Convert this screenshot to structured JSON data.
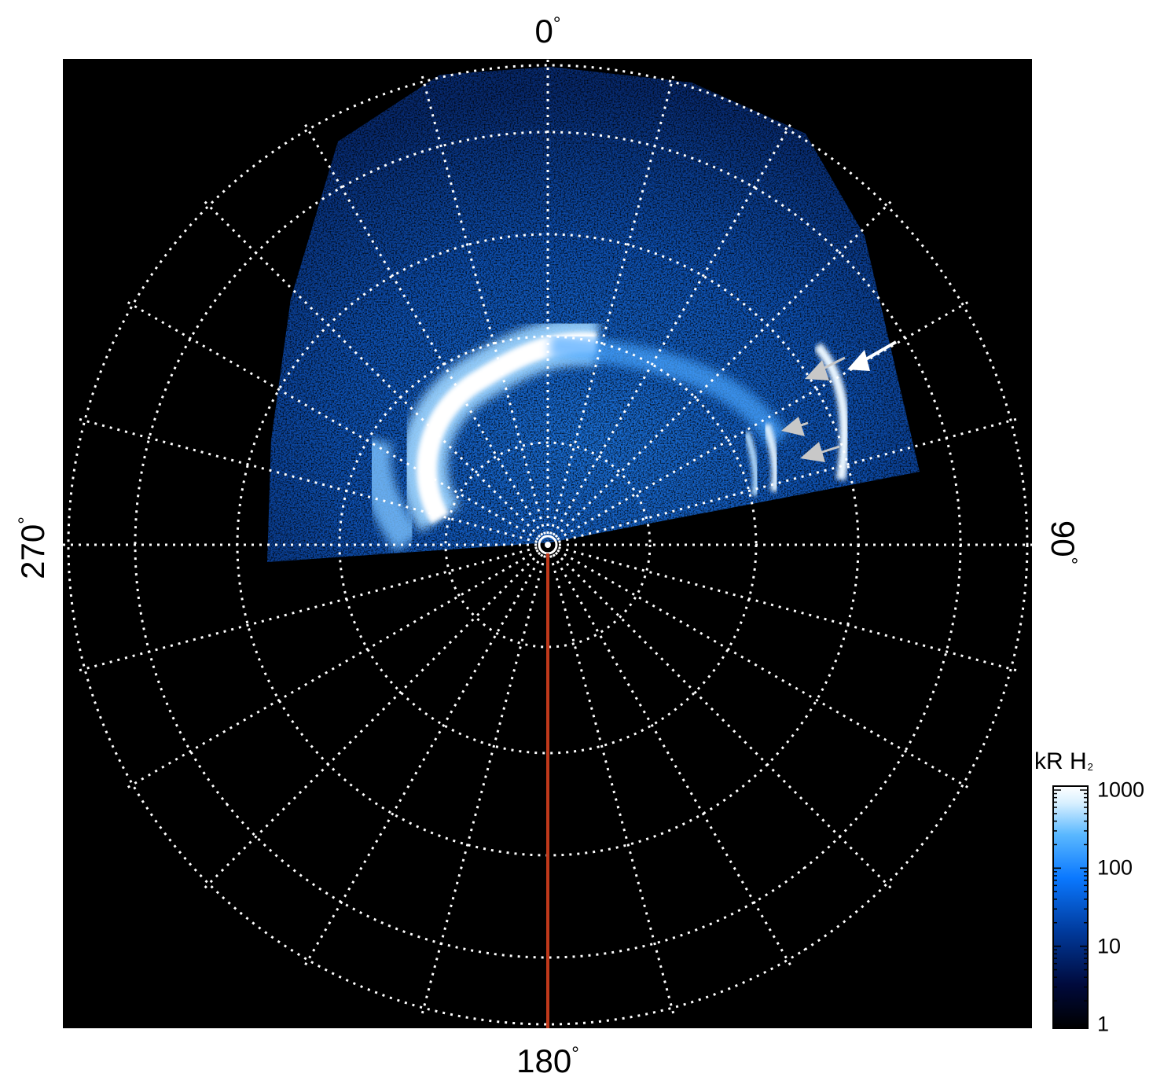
{
  "chart_data": {
    "type": "heatmap",
    "projection": "polar",
    "angle_labels": {
      "top": "0",
      "right": "90",
      "bottom": "180",
      "left": "270",
      "degree_symbol": "°"
    },
    "grid": true,
    "grid_style": "white dotted",
    "background": "#000000",
    "reference_meridian_deg": 180,
    "colorbar": {
      "title": "kR H",
      "title_subscript": "2",
      "scale": "log",
      "range": [
        1,
        1000
      ],
      "ticks": [
        "1",
        "10",
        "100",
        "1000"
      ],
      "placement": "bottom-right"
    },
    "colors": {
      "reference_line": "#c0391b",
      "arrow_primary": "#ffffff",
      "arrow_secondary": "#c8c8c8",
      "colormap": [
        "#000000",
        "#000a3c",
        "#003a9c",
        "#0a78ff",
        "#5ab8ff",
        "#d8f0ff",
        "#ffffff"
      ]
    }
  }
}
